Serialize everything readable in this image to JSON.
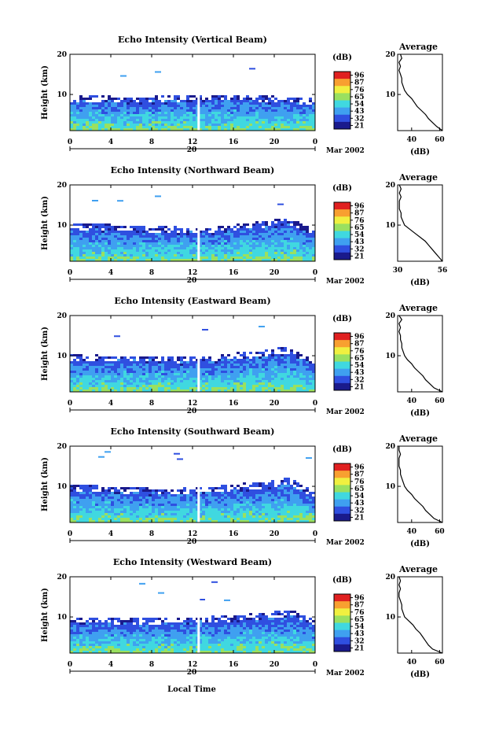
{
  "figure": {
    "xlabel_main": "Local Time",
    "date_label": "Mar 2002",
    "day_label": "20"
  },
  "chart_data": [
    {
      "type": "heatmap",
      "title": "Echo Intensity (Vertical Beam)",
      "ylabel": "Height (km)",
      "x_ticks": [
        "0",
        "4",
        "8",
        "12",
        "16",
        "20",
        "0"
      ],
      "xlim": [
        0,
        24
      ],
      "y_ticks": [
        "10",
        "20"
      ],
      "ylim": [
        1,
        20
      ],
      "gap_hour": 12.6,
      "echo_top_km": [
        9.2,
        9.4,
        9.0,
        9.2,
        9.5,
        9.6,
        9.8,
        9.4,
        9.0,
        8.6
      ],
      "colorbar": {
        "label": "(dB)",
        "ticks": [
          "96",
          "87",
          "76",
          "65",
          "54",
          "43",
          "32",
          "21"
        ]
      },
      "profile": {
        "title": "Average",
        "xlabel": "(dB)",
        "x_ticks": [
          "40",
          "60"
        ],
        "xlim": [
          30,
          62
        ],
        "y_ticks": [
          "10",
          "20"
        ],
        "heights": [
          1,
          2,
          3,
          4,
          5,
          6,
          7,
          8,
          9,
          10,
          11,
          12,
          13,
          14,
          15,
          16,
          17,
          18,
          19,
          20
        ],
        "values": [
          62,
          58,
          55,
          52,
          50,
          47,
          44,
          42,
          40,
          37,
          35,
          34,
          33,
          33,
          32,
          31,
          32,
          31,
          33,
          32
        ]
      }
    },
    {
      "type": "heatmap",
      "title": "Echo Intensity (Northward Beam)",
      "ylabel": "Height (km)",
      "x_ticks": [
        "0",
        "4",
        "8",
        "12",
        "16",
        "20",
        "0"
      ],
      "xlim": [
        0,
        24
      ],
      "y_ticks": [
        "10",
        "20"
      ],
      "ylim": [
        1,
        20
      ],
      "gap_hour": 12.6,
      "echo_top_km": [
        10.2,
        10.0,
        9.6,
        9.4,
        9.2,
        9.0,
        9.8,
        10.6,
        11.6,
        8.2
      ],
      "colorbar": {
        "label": "(dB)",
        "ticks": [
          "96",
          "87",
          "76",
          "65",
          "54",
          "43",
          "32",
          "21"
        ]
      },
      "profile": {
        "title": "Average",
        "xlabel": "(dB)",
        "x_ticks": [
          "30",
          "56"
        ],
        "xlim": [
          30,
          56
        ],
        "y_ticks": [
          "10",
          "20"
        ],
        "heights": [
          1,
          2,
          3,
          4,
          5,
          6,
          7,
          8,
          9,
          10,
          11,
          12,
          13,
          14,
          15,
          16,
          17,
          18,
          19,
          20
        ],
        "values": [
          56,
          54,
          52,
          50,
          48,
          46,
          43,
          40,
          37,
          34,
          33,
          32,
          32,
          31,
          31,
          31,
          32,
          31,
          32,
          31
        ]
      }
    },
    {
      "type": "heatmap",
      "title": "Echo Intensity (Eastward Beam)",
      "ylabel": "Height (km)",
      "x_ticks": [
        "0",
        "4",
        "8",
        "12",
        "16",
        "20",
        "0"
      ],
      "xlim": [
        0,
        24
      ],
      "y_ticks": [
        "10",
        "20"
      ],
      "ylim": [
        1,
        20
      ],
      "gap_hour": 12.6,
      "echo_top_km": [
        10.0,
        9.8,
        9.6,
        9.6,
        9.4,
        9.6,
        10.4,
        11.0,
        12.0,
        8.0
      ],
      "colorbar": {
        "label": "(dB)",
        "ticks": [
          "96",
          "87",
          "76",
          "65",
          "54",
          "43",
          "32",
          "21"
        ]
      },
      "profile": {
        "title": "Average",
        "xlabel": "(dB)",
        "x_ticks": [
          "40",
          "60"
        ],
        "xlim": [
          30,
          62
        ],
        "y_ticks": [
          "10",
          "20"
        ],
        "heights": [
          1,
          2,
          3,
          4,
          5,
          6,
          7,
          8,
          9,
          10,
          11,
          12,
          13,
          14,
          15,
          16,
          17,
          18,
          19,
          20
        ],
        "values": [
          62,
          56,
          53,
          50,
          48,
          45,
          42,
          40,
          37,
          35,
          34,
          33,
          33,
          32,
          32,
          31,
          32,
          31,
          33,
          31
        ]
      }
    },
    {
      "type": "heatmap",
      "title": "Echo Intensity (Southward Beam)",
      "ylabel": "Height (km)",
      "x_ticks": [
        "0",
        "4",
        "8",
        "12",
        "16",
        "20",
        "0"
      ],
      "xlim": [
        0,
        24
      ],
      "y_ticks": [
        "10",
        "20"
      ],
      "ylim": [
        1,
        20
      ],
      "gap_hour": 12.6,
      "echo_top_km": [
        10.2,
        9.8,
        9.4,
        9.2,
        9.2,
        9.6,
        10.2,
        10.8,
        11.8,
        8.0
      ],
      "colorbar": {
        "label": "(dB)",
        "ticks": [
          "96",
          "87",
          "76",
          "65",
          "54",
          "43",
          "32",
          "21"
        ]
      },
      "profile": {
        "title": "Average",
        "xlabel": "(dB)",
        "x_ticks": [
          "40",
          "60"
        ],
        "xlim": [
          30,
          62
        ],
        "y_ticks": [
          "10",
          "20"
        ],
        "heights": [
          1,
          2,
          3,
          4,
          5,
          6,
          7,
          8,
          9,
          10,
          11,
          12,
          13,
          14,
          15,
          16,
          17,
          18,
          19,
          20
        ],
        "values": [
          62,
          56,
          53,
          50,
          48,
          45,
          42,
          40,
          37,
          35,
          34,
          33,
          32,
          32,
          31,
          31,
          31,
          32,
          31,
          31
        ]
      }
    },
    {
      "type": "heatmap",
      "title": "Echo Intensity (Westward Beam)",
      "ylabel": "Height (km)",
      "x_ticks": [
        "0",
        "4",
        "8",
        "12",
        "16",
        "20",
        "0"
      ],
      "xlim": [
        0,
        24
      ],
      "y_ticks": [
        "10",
        "20"
      ],
      "ylim": [
        1,
        20
      ],
      "gap_hour": 12.6,
      "echo_top_km": [
        9.6,
        9.6,
        9.4,
        9.4,
        9.6,
        9.8,
        10.2,
        10.6,
        11.6,
        8.6
      ],
      "colorbar": {
        "label": "(dB)",
        "ticks": [
          "96",
          "87",
          "76",
          "65",
          "54",
          "43",
          "32",
          "21"
        ]
      },
      "profile": {
        "title": "Average",
        "xlabel": "(dB)",
        "x_ticks": [
          "40",
          "60"
        ],
        "xlim": [
          30,
          62
        ],
        "y_ticks": [
          "10",
          "20"
        ],
        "heights": [
          1,
          2,
          3,
          4,
          5,
          6,
          7,
          8,
          9,
          10,
          11,
          12,
          13,
          14,
          15,
          16,
          17,
          18,
          19,
          20
        ],
        "values": [
          62,
          55,
          52,
          50,
          48,
          46,
          43,
          41,
          38,
          35,
          34,
          33,
          33,
          32,
          31,
          31,
          32,
          31,
          32,
          31
        ]
      }
    }
  ]
}
